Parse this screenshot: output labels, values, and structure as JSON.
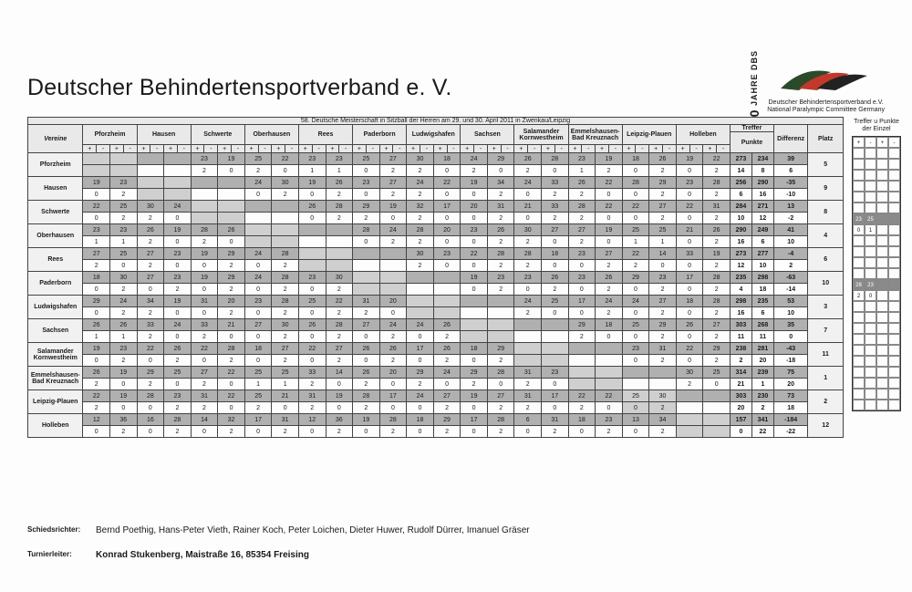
{
  "header": {
    "org": "Deutscher Behindertensportverband e. V.",
    "logo_60": "60 JAHRE",
    "logo_abbr": "DBS",
    "logo_line1": "Deutscher Behindertensportverband e.V.",
    "logo_line2": "National Paralympic Committee Germany"
  },
  "table": {
    "title": "58. Deutsche Meisterschaft in Sitzball der Herren am 29. und 30. April 2011 in Zwenkau/Leipzig",
    "col_vereine": "Vereine",
    "col_treffer": "Treffer",
    "col_punkte": "Punkte",
    "col_diff": "Differenz",
    "col_platz": "Platz",
    "opponents": [
      "Pforzheim",
      "Hausen",
      "Schwerte",
      "Oberhausen",
      "Rees",
      "Paderborn",
      "Ludwigshafen",
      "Sachsen",
      "Salamander Kornwestheim",
      "Emmelshausen-Bad Kreuznach",
      "Leipzig-Plauen",
      "Holleben"
    ],
    "side_label": "Treffer u Punkte der Einzel",
    "teams": [
      {
        "name": "Pforzheim",
        "r1": [
          "",
          "",
          "",
          "",
          "23",
          "19",
          "25",
          "22",
          "23",
          "23",
          "25",
          "27",
          "30",
          "18",
          "24",
          "29",
          "26",
          "28",
          "23",
          "19",
          "18",
          "26",
          "19",
          "22",
          "36",
          "12"
        ],
        "r2": [
          "",
          "",
          "",
          "",
          "2",
          "0",
          "2",
          "0",
          "1",
          "1",
          "0",
          "2",
          "2",
          "0",
          "2",
          "0",
          "2",
          "0",
          "1",
          "2",
          "0",
          "2",
          "0",
          "2",
          "2",
          "0"
        ],
        "t": [
          "273",
          "234"
        ],
        "p": [
          "14",
          "8"
        ],
        "d": [
          "39",
          "6"
        ],
        "platz": "5"
      },
      {
        "name": "Hausen",
        "r1": [
          "19",
          "23",
          "",
          "",
          "",
          "",
          "24",
          "30",
          "19",
          "26",
          "23",
          "27",
          "24",
          "22",
          "19",
          "34",
          "24",
          "33",
          "26",
          "22",
          "28",
          "29",
          "23",
          "28",
          "28",
          "16"
        ],
        "r2": [
          "0",
          "2",
          "",
          "",
          "",
          "",
          "0",
          "2",
          "0",
          "2",
          "0",
          "2",
          "2",
          "0",
          "0",
          "2",
          "0",
          "2",
          "2",
          "0",
          "0",
          "2",
          "0",
          "2",
          "2",
          "0"
        ],
        "t": [
          "256",
          "290"
        ],
        "p": [
          "6",
          "16"
        ],
        "d": [
          "-35",
          "-10"
        ],
        "platz": "9"
      },
      {
        "name": "Schwerte",
        "r1": [
          "22",
          "25",
          "30",
          "24",
          "",
          "",
          "",
          "",
          "26",
          "28",
          "29",
          "19",
          "32",
          "17",
          "20",
          "31",
          "21",
          "33",
          "28",
          "22",
          "22",
          "27",
          "22",
          "31",
          "32",
          "14"
        ],
        "r2": [
          "0",
          "2",
          "2",
          "0",
          "",
          "",
          "",
          "",
          "0",
          "2",
          "2",
          "0",
          "2",
          "0",
          "0",
          "2",
          "0",
          "2",
          "2",
          "0",
          "0",
          "2",
          "0",
          "2",
          "2",
          "0"
        ],
        "t": [
          "284",
          "271"
        ],
        "p": [
          "10",
          "12"
        ],
        "d": [
          "13",
          "-2"
        ],
        "platz": "8"
      },
      {
        "name": "Oberhausen",
        "r1": [
          "23",
          "23",
          "26",
          "19",
          "28",
          "26",
          "",
          "",
          "",
          "",
          "28",
          "24",
          "28",
          "20",
          "23",
          "26",
          "30",
          "27",
          "27",
          "19",
          "25",
          "25",
          "21",
          "26",
          "31",
          "17"
        ],
        "r2": [
          "1",
          "1",
          "2",
          "0",
          "2",
          "0",
          "",
          "",
          "",
          "",
          "0",
          "2",
          "2",
          "0",
          "0",
          "2",
          "2",
          "0",
          "2",
          "0",
          "1",
          "1",
          "0",
          "2",
          "2",
          "0"
        ],
        "t": [
          "290",
          "249"
        ],
        "p": [
          "16",
          "6"
        ],
        "d": [
          "41",
          "10"
        ],
        "platz": "4",
        "side_r1": [
          "23",
          "25"
        ],
        "side_r2": [
          "0",
          "1"
        ]
      },
      {
        "name": "Rees",
        "r1": [
          "27",
          "25",
          "27",
          "23",
          "19",
          "29",
          "24",
          "28",
          "",
          "",
          "",
          "",
          "30",
          "23",
          "22",
          "28",
          "28",
          "18",
          "23",
          "27",
          "22",
          "14",
          "33",
          "19",
          "31",
          "36"
        ],
        "r2": [
          "2",
          "0",
          "2",
          "0",
          "0",
          "2",
          "0",
          "2",
          "",
          "",
          "",
          "",
          "2",
          "0",
          "0",
          "2",
          "2",
          "0",
          "0",
          "2",
          "2",
          "0",
          "0",
          "2",
          "2",
          "0"
        ],
        "t": [
          "273",
          "277"
        ],
        "p": [
          "12",
          "10"
        ],
        "d": [
          "-4",
          "2"
        ],
        "platz": "6"
      },
      {
        "name": "Paderborn",
        "r1": [
          "18",
          "30",
          "27",
          "23",
          "19",
          "29",
          "24",
          "28",
          "23",
          "30",
          "",
          "",
          "",
          "",
          "19",
          "23",
          "23",
          "26",
          "23",
          "26",
          "29",
          "23",
          "17",
          "28",
          "28",
          "19"
        ],
        "r2": [
          "0",
          "2",
          "0",
          "2",
          "0",
          "2",
          "0",
          "2",
          "0",
          "2",
          "",
          "",
          "",
          "",
          "0",
          "2",
          "0",
          "2",
          "0",
          "2",
          "0",
          "2",
          "0",
          "2",
          "2",
          "0"
        ],
        "t": [
          "235",
          "298"
        ],
        "p": [
          "4",
          "18"
        ],
        "d": [
          "-63",
          "-14"
        ],
        "platz": "10"
      },
      {
        "name": "Ludwigshafen",
        "r1": [
          "29",
          "24",
          "34",
          "19",
          "31",
          "20",
          "23",
          "28",
          "25",
          "22",
          "31",
          "20",
          "",
          "",
          "",
          "",
          "24",
          "25",
          "17",
          "24",
          "24",
          "27",
          "18",
          "28",
          "29",
          "18"
        ],
        "r2": [
          "0",
          "2",
          "2",
          "0",
          "0",
          "2",
          "0",
          "2",
          "0",
          "2",
          "2",
          "0",
          "",
          "",
          "",
          "",
          "2",
          "0",
          "0",
          "2",
          "0",
          "2",
          "0",
          "2",
          "2",
          "0"
        ],
        "t": [
          "298",
          "235"
        ],
        "p": [
          "16",
          "6"
        ],
        "d": [
          "53",
          "10"
        ],
        "platz": "3",
        "side_r1": [
          "28",
          "23"
        ],
        "side_r2": [
          "2",
          "0"
        ]
      },
      {
        "name": "Sachsen",
        "r1": [
          "26",
          "26",
          "33",
          "24",
          "33",
          "21",
          "27",
          "30",
          "26",
          "28",
          "27",
          "24",
          "24",
          "26",
          "",
          "",
          "",
          "",
          "29",
          "18",
          "25",
          "29",
          "26",
          "27",
          "28",
          "18"
        ],
        "r2": [
          "1",
          "1",
          "2",
          "0",
          "2",
          "0",
          "0",
          "2",
          "0",
          "2",
          "0",
          "2",
          "0",
          "2",
          "",
          "",
          "",
          "",
          "2",
          "0",
          "0",
          "2",
          "0",
          "2",
          "2",
          "0"
        ],
        "t": [
          "303",
          "268"
        ],
        "p": [
          "11",
          "11"
        ],
        "d": [
          "35",
          "0"
        ],
        "platz": "7"
      },
      {
        "name": "Salamander Kornwestheim",
        "r1": [
          "19",
          "23",
          "22",
          "26",
          "22",
          "28",
          "18",
          "27",
          "22",
          "27",
          "26",
          "26",
          "17",
          "26",
          "18",
          "29",
          "",
          "",
          "",
          "",
          "23",
          "31",
          "22",
          "29",
          "31",
          "8"
        ],
        "r2": [
          "0",
          "2",
          "0",
          "2",
          "0",
          "2",
          "0",
          "2",
          "0",
          "2",
          "0",
          "2",
          "0",
          "2",
          "0",
          "2",
          "",
          "",
          "",
          "",
          "0",
          "2",
          "0",
          "2",
          "2",
          "0"
        ],
        "t": [
          "238",
          "281"
        ],
        "p": [
          "2",
          "20"
        ],
        "d": [
          "-43",
          "-18"
        ],
        "platz": "11"
      },
      {
        "name": "Emmelshausen-Bad Kreuznach",
        "r1": [
          "26",
          "19",
          "29",
          "25",
          "27",
          "22",
          "25",
          "25",
          "33",
          "14",
          "26",
          "20",
          "29",
          "24",
          "29",
          "28",
          "31",
          "23",
          "",
          "",
          "",
          "",
          "30",
          "25",
          "32",
          "16"
        ],
        "r2": [
          "2",
          "0",
          "2",
          "0",
          "2",
          "0",
          "1",
          "1",
          "2",
          "0",
          "2",
          "0",
          "2",
          "0",
          "2",
          "0",
          "2",
          "0",
          "",
          "",
          "",
          "",
          "2",
          "0",
          "2",
          "0"
        ],
        "t": [
          "314",
          "239"
        ],
        "p": [
          "21",
          "1"
        ],
        "d": [
          "75",
          "20"
        ],
        "platz": "1"
      },
      {
        "name": "Leipzig-Plauen",
        "r1": [
          "22",
          "19",
          "28",
          "23",
          "31",
          "22",
          "25",
          "21",
          "31",
          "19",
          "28",
          "17",
          "24",
          "27",
          "19",
          "27",
          "31",
          "17",
          "22",
          "22",
          "25",
          "30",
          "",
          "",
          "34",
          "13"
        ],
        "r2": [
          "2",
          "0",
          "0",
          "2",
          "2",
          "0",
          "2",
          "0",
          "2",
          "0",
          "2",
          "0",
          "0",
          "2",
          "0",
          "2",
          "2",
          "0",
          "2",
          "0",
          "0",
          "2",
          "",
          "",
          "2",
          "0"
        ],
        "t": [
          "303",
          "230"
        ],
        "p": [
          "20",
          "2"
        ],
        "d": [
          "73",
          "18"
        ],
        "platz": "2"
      },
      {
        "name": "Holleben",
        "r1": [
          "12",
          "36",
          "16",
          "28",
          "14",
          "32",
          "17",
          "31",
          "12",
          "36",
          "19",
          "28",
          "18",
          "29",
          "17",
          "28",
          "6",
          "31",
          "18",
          "23",
          "13",
          "34",
          "",
          "",
          "",
          ""
        ],
        "r2": [
          "0",
          "2",
          "0",
          "2",
          "0",
          "2",
          "0",
          "2",
          "0",
          "2",
          "0",
          "2",
          "0",
          "2",
          "0",
          "2",
          "0",
          "2",
          "0",
          "2",
          "0",
          "2",
          "",
          "",
          "",
          ""
        ],
        "t": [
          "157",
          "341"
        ],
        "p": [
          "0",
          "22"
        ],
        "d": [
          "-184",
          "-22"
        ],
        "platz": "12"
      }
    ]
  },
  "footer": {
    "ref_label": "Schiedsrichter:",
    "referees": "Bernd Poethig, Hans-Peter Vieth, Rainer Koch, Peter Loichen, Dieter Huwer, Rudolf Dürrer, Imanuel Gräser",
    "dir_label": "Turnierleiter:",
    "director": "Konrad Stukenberg, Maistraße 16, 85354 Freising"
  },
  "colors": {
    "grey_row": "#b0b0b0",
    "diag": "#cfcfcf",
    "header_bg": "#e9e9e9"
  }
}
